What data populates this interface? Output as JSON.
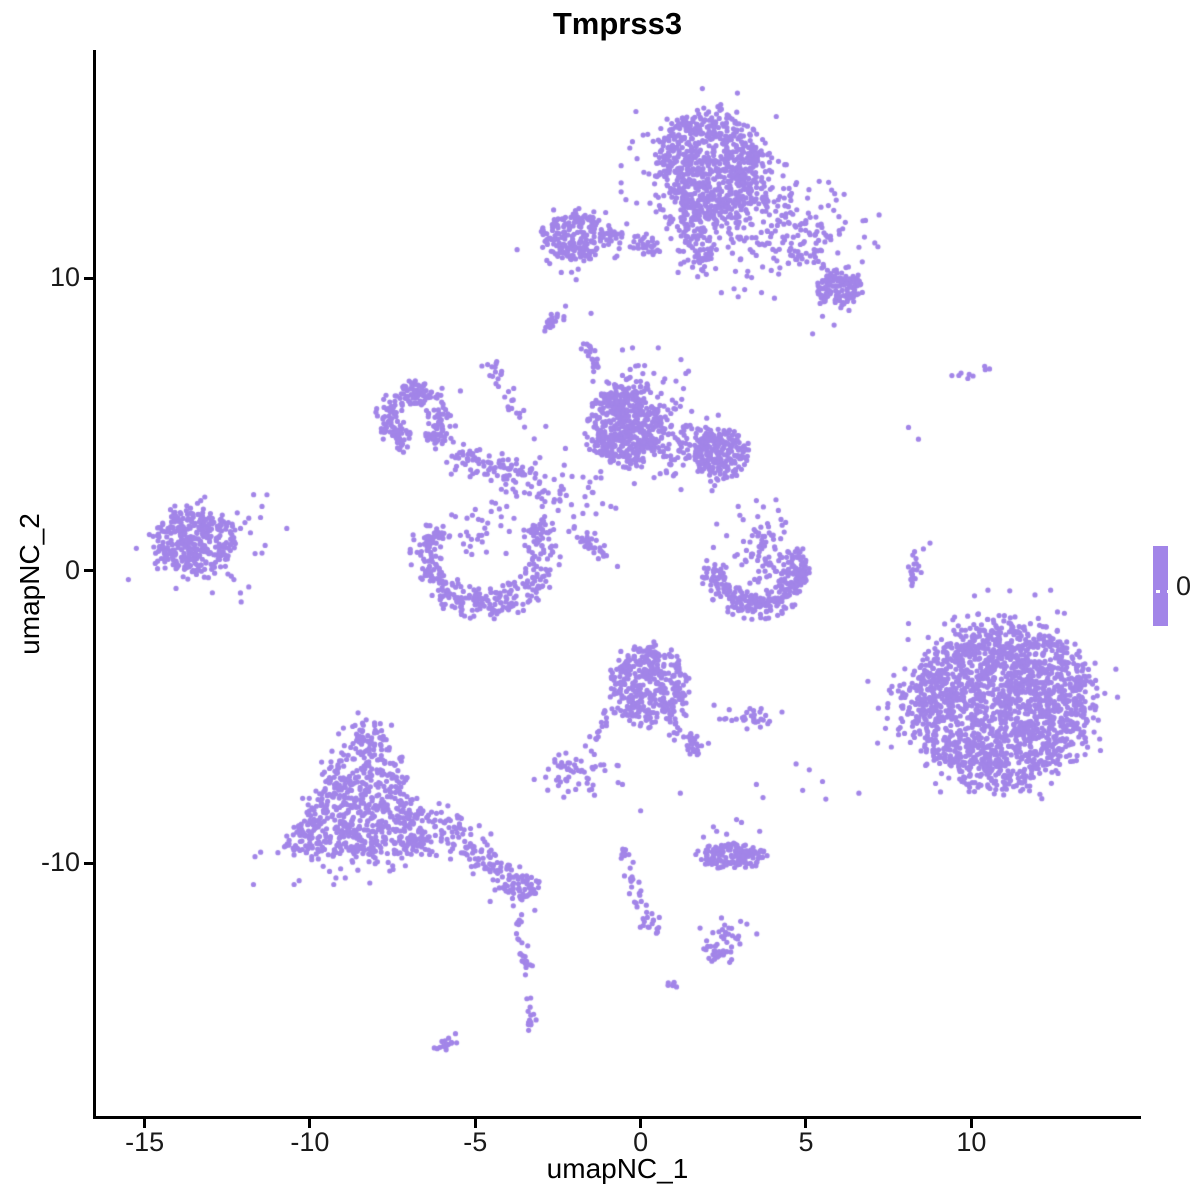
{
  "chart_data": {
    "type": "scatter",
    "title": "Tmprss3",
    "xlabel": "umapNC_1",
    "ylabel": "umapNC_2",
    "xlim": [
      -16.5,
      15.1
    ],
    "ylim": [
      -18.7,
      17.8
    ],
    "x_ticks": [
      -15,
      -10,
      -5,
      0,
      5,
      10
    ],
    "y_ticks": [
      -10,
      0,
      10
    ],
    "grid": false,
    "point_color": "#A285E8",
    "point_radius_px": 2.6,
    "legend": {
      "label": "0",
      "bar_color": "#A285E8",
      "position": "right"
    },
    "clusters": [
      {
        "name": "top-main",
        "type": "disk",
        "cx": 2.1,
        "cy": 13.8,
        "rx": 1.7,
        "ry": 1.9,
        "n": 680
      },
      {
        "name": "top-main-fringe",
        "type": "blob",
        "cx": 2.05,
        "cy": 13.6,
        "sx": 1.1,
        "sy": 1.2,
        "n": 140
      },
      {
        "name": "top-neck",
        "type": "chain",
        "x0": 1.55,
        "y0": 12.0,
        "x1": 1.85,
        "y1": 10.3,
        "w": 0.3,
        "n": 70
      },
      {
        "name": "top-neck-spread",
        "type": "blob",
        "cx": 1.75,
        "cy": 11.6,
        "sx": 0.6,
        "sy": 0.75,
        "n": 45
      },
      {
        "name": "top-right-arm",
        "type": "blob",
        "cx": 4.4,
        "cy": 11.6,
        "sx": 1.25,
        "sy": 0.95,
        "n": 150
      },
      {
        "name": "top-right-bridge",
        "type": "chain",
        "x0": 3.0,
        "y0": 12.9,
        "x1": 5.6,
        "y1": 10.4,
        "w": 0.7,
        "n": 70
      },
      {
        "name": "top-right-clump",
        "type": "disk",
        "cx": 6.0,
        "cy": 9.7,
        "rx": 0.72,
        "ry": 0.65,
        "n": 120
      },
      {
        "name": "top-right-clump-dots",
        "type": "dots",
        "pts": [
          [
            5.5,
            8.7
          ],
          [
            5.85,
            8.4
          ],
          [
            5.2,
            8.1
          ],
          [
            6.3,
            8.9
          ]
        ]
      },
      {
        "name": "top-left-blob",
        "type": "disk",
        "cx": -1.95,
        "cy": 11.45,
        "rx": 1.05,
        "ry": 0.8,
        "n": 180
      },
      {
        "name": "top-left-fringe",
        "type": "blob",
        "cx": -1.9,
        "cy": 11.4,
        "sx": 0.85,
        "sy": 0.6,
        "n": 40
      },
      {
        "name": "top-left-tail",
        "type": "chain",
        "x0": -0.9,
        "y0": 11.4,
        "x1": 0.65,
        "y1": 11.0,
        "w": 0.17,
        "n": 40
      },
      {
        "name": "top-left-dots",
        "type": "dots",
        "pts": [
          [
            -2.4,
            10.2
          ],
          [
            -1.95,
            9.95
          ],
          [
            -2.75,
            10.5
          ]
        ]
      },
      {
        "name": "top-left-streak",
        "type": "chain",
        "x0": -2.85,
        "y0": 8.4,
        "x1": -2.2,
        "y1": 9.05,
        "w": 0.1,
        "n": 20
      },
      {
        "name": "wisp-above-central",
        "type": "chain",
        "x0": -1.6,
        "y0": 7.9,
        "x1": -1.3,
        "y1": 6.6,
        "w": 0.13,
        "n": 22
      },
      {
        "name": "wisp-dots",
        "type": "dots",
        "pts": [
          [
            -1.5,
            8.8
          ],
          [
            -0.55,
            7.55
          ],
          [
            -0.15,
            7.0
          ],
          [
            0.4,
            6.75
          ]
        ]
      },
      {
        "name": "ring",
        "type": "arc",
        "cx": -6.8,
        "cy": 5.2,
        "rx": 0.8,
        "ry": 0.95,
        "a0": -60,
        "a1": 255,
        "w": 0.42,
        "n": 220
      },
      {
        "name": "ring-dots",
        "type": "dots",
        "pts": [
          [
            -6.55,
            6.1
          ],
          [
            -5.45,
            6.15
          ],
          [
            -7.35,
            4.2
          ],
          [
            -6.0,
            4.35
          ],
          [
            -7.7,
            6.0
          ]
        ]
      },
      {
        "name": "ring-to-central-chain",
        "type": "chain",
        "x0": -5.85,
        "y0": 4.0,
        "x1": -3.1,
        "y1": 3.1,
        "w": 0.28,
        "n": 95
      },
      {
        "name": "upper-chain",
        "type": "chain",
        "x0": -4.55,
        "y0": 7.1,
        "x1": -3.5,
        "y1": 4.9,
        "w": 0.14,
        "n": 25
      },
      {
        "name": "upper-chain-dots",
        "type": "dots",
        "pts": [
          [
            -4.3,
            6.3
          ],
          [
            -3.9,
            5.55
          ],
          [
            -4.8,
            7.0
          ]
        ]
      },
      {
        "name": "hub-scatter",
        "type": "blob",
        "cx": -2.35,
        "cy": 2.9,
        "sx": 0.85,
        "sy": 0.85,
        "n": 60
      },
      {
        "name": "hub-chain",
        "type": "chain",
        "x0": -1.8,
        "y0": 1.35,
        "x1": -1.0,
        "y1": 0.5,
        "w": 0.12,
        "n": 28
      },
      {
        "name": "hub-dots",
        "type": "dots",
        "pts": [
          [
            -4.5,
            2.35
          ],
          [
            -4.05,
            2.2
          ],
          [
            -3.75,
            2.55
          ],
          [
            -5.0,
            2.1
          ],
          [
            -5.25,
            1.8
          ],
          [
            -0.7,
            0.15
          ],
          [
            -0.9,
            2.2
          ],
          [
            -1.35,
            1.95
          ]
        ]
      },
      {
        "name": "central-main",
        "type": "disk",
        "cx": -0.5,
        "cy": 5.0,
        "rx": 1.1,
        "ry": 1.35,
        "n": 450
      },
      {
        "name": "central-mid",
        "type": "blob",
        "cx": 0.9,
        "cy": 4.3,
        "sx": 0.75,
        "sy": 0.65,
        "n": 140
      },
      {
        "name": "central-right",
        "type": "disk",
        "cx": 2.45,
        "cy": 4.0,
        "rx": 0.75,
        "ry": 0.88,
        "n": 210
      },
      {
        "name": "central-top-fringe",
        "type": "blob",
        "cx": 0.2,
        "cy": 6.3,
        "sx": 0.8,
        "sy": 0.55,
        "n": 40
      },
      {
        "name": "far-left",
        "type": "disk",
        "cx": -13.5,
        "cy": 1.0,
        "rx": 1.25,
        "ry": 1.12,
        "n": 320
      },
      {
        "name": "far-left-fringe",
        "type": "blob",
        "cx": -13.2,
        "cy": 0.95,
        "sx": 1.0,
        "sy": 0.9,
        "n": 60
      },
      {
        "name": "far-left-dots",
        "type": "dots",
        "pts": [
          [
            -11.45,
            2.2
          ],
          [
            -11.85,
            1.8
          ],
          [
            -12.1,
            1.45
          ],
          [
            -10.7,
            1.45
          ],
          [
            -12.3,
            -0.3
          ],
          [
            -11.85,
            -0.55
          ],
          [
            -14.05,
            -0.6
          ],
          [
            -11.3,
            2.6
          ]
        ]
      },
      {
        "name": "crescent",
        "type": "arc",
        "cx": -4.7,
        "cy": 0.6,
        "rx": 1.75,
        "ry": 1.75,
        "a0": 150,
        "a1": 395,
        "w": 0.52,
        "n": 340
      },
      {
        "name": "crescent-inner",
        "type": "blob",
        "cx": -4.85,
        "cy": 1.3,
        "sx": 0.65,
        "sy": 0.45,
        "n": 30
      },
      {
        "name": "smile",
        "type": "arc",
        "cx": 3.5,
        "cy": 0.35,
        "rx": 1.3,
        "ry": 1.55,
        "a0": 185,
        "a1": 350,
        "w": 0.46,
        "n": 220
      },
      {
        "name": "smile-right-clump",
        "type": "disk",
        "cx": 4.7,
        "cy": 0.1,
        "rx": 0.45,
        "ry": 0.68,
        "n": 60
      },
      {
        "name": "smile-vertical",
        "type": "blob",
        "cx": 3.75,
        "cy": 0.75,
        "sx": 0.38,
        "sy": 0.7,
        "n": 70
      },
      {
        "name": "smile-left-dots",
        "type": "dots",
        "pts": [
          [
            2.3,
            1.6
          ],
          [
            2.6,
            1.2
          ],
          [
            2.2,
            0.8
          ],
          [
            2.85,
            0.5
          ],
          [
            2.5,
            0.2
          ],
          [
            3.0,
            1.9
          ],
          [
            3.5,
            2.4
          ],
          [
            2.0,
            0.35
          ],
          [
            2.95,
            2.2
          ],
          [
            3.1,
            1.75
          ]
        ]
      },
      {
        "name": "center-bottom",
        "type": "disk",
        "cx": 0.25,
        "cy": -3.9,
        "rx": 1.15,
        "ry": 1.3,
        "n": 380
      },
      {
        "name": "cb-right-arm",
        "type": "chain",
        "x0": 0.95,
        "y0": -5.2,
        "x1": 1.7,
        "y1": -6.1,
        "w": 0.2,
        "n": 40
      },
      {
        "name": "cb-left-arm",
        "type": "chain",
        "x0": -0.85,
        "y0": -4.7,
        "x1": -1.6,
        "y1": -6.25,
        "w": 0.11,
        "n": 20
      },
      {
        "name": "cb-right-clump",
        "type": "blob",
        "cx": 3.3,
        "cy": -5.0,
        "sx": 0.45,
        "sy": 0.17,
        "n": 32
      },
      {
        "name": "left-pair",
        "type": "blob",
        "cx": -2.0,
        "cy": -6.95,
        "sx": 0.55,
        "sy": 0.33,
        "n": 55
      },
      {
        "name": "mid-scatter-dots",
        "type": "dots",
        "pts": [
          [
            -0.55,
            -7.3
          ],
          [
            0.0,
            -8.2
          ],
          [
            3.5,
            -7.3
          ],
          [
            3.7,
            -7.75
          ],
          [
            2.9,
            -8.5
          ],
          [
            2.3,
            -8.9
          ],
          [
            1.2,
            -7.6
          ]
        ]
      },
      {
        "name": "bottom-left-triangle",
        "type": "tri",
        "apexX": -8.3,
        "apexY": -4.9,
        "baseY": -9.6,
        "halfW": 2.3,
        "skew": -0.15,
        "n": 700
      },
      {
        "name": "bl-base-fringe",
        "type": "blob",
        "cx": -8.6,
        "cy": -9.4,
        "sx": 1.6,
        "sy": 0.55,
        "n": 70
      },
      {
        "name": "bl-tail",
        "type": "chain",
        "x0": -6.2,
        "y0": -8.4,
        "x1": -4.0,
        "y1": -10.5,
        "w": 0.3,
        "n": 120
      },
      {
        "name": "bl-hook",
        "type": "disk",
        "cx": -3.6,
        "cy": -10.8,
        "rx": 0.55,
        "ry": 0.45,
        "n": 60
      },
      {
        "name": "bl-hook-dots",
        "type": "dots",
        "pts": [
          [
            -3.85,
            -11.45
          ],
          [
            -3.6,
            -11.75
          ],
          [
            -3.2,
            -11.6
          ],
          [
            -4.55,
            -11.3
          ]
        ]
      },
      {
        "name": "thin-chain-upper",
        "type": "chain",
        "x0": -3.7,
        "y0": -11.9,
        "x1": -3.35,
        "y1": -14.2,
        "w": 0.09,
        "n": 24
      },
      {
        "name": "thin-chain-lower",
        "type": "chain",
        "x0": -3.38,
        "y0": -14.3,
        "x1": -3.3,
        "y1": -15.75,
        "w": 0.09,
        "n": 15,
        "clump_end": true
      },
      {
        "name": "bottom-streak",
        "type": "chain",
        "x0": -6.1,
        "y0": -16.3,
        "x1": -5.55,
        "y1": -15.95,
        "w": 0.09,
        "n": 15
      },
      {
        "name": "j-chain-upper",
        "type": "chain",
        "x0": -0.55,
        "y0": -9.2,
        "x1": -0.15,
        "y1": -11.0,
        "w": 0.11,
        "n": 22
      },
      {
        "name": "j-chain-lower",
        "type": "chain",
        "x0": -0.15,
        "y0": -11.0,
        "x1": 0.45,
        "y1": -12.35,
        "w": 0.15,
        "n": 26
      },
      {
        "name": "bottom-band",
        "type": "disk",
        "cx": 2.75,
        "cy": -9.75,
        "rx": 1.05,
        "ry": 0.45,
        "n": 140
      },
      {
        "name": "bottom-band-dots",
        "type": "dots",
        "pts": [
          [
            2.2,
            -8.75
          ],
          [
            3.05,
            -8.6
          ],
          [
            2.6,
            -9.0
          ],
          [
            3.6,
            -8.9
          ],
          [
            1.9,
            -9.1
          ]
        ]
      },
      {
        "name": "small-clump-below",
        "type": "blob",
        "cx": 2.6,
        "cy": -12.6,
        "sx": 0.38,
        "sy": 0.35,
        "n": 40
      },
      {
        "name": "small-clump-tail",
        "type": "chain",
        "x0": 2.35,
        "y0": -12.95,
        "x1": 2.1,
        "y1": -13.35,
        "w": 0.08,
        "n": 8
      },
      {
        "name": "tiny-pair",
        "type": "blob",
        "cx": 0.9,
        "cy": -14.1,
        "sx": 0.14,
        "sy": 0.11,
        "n": 6
      },
      {
        "name": "bottom-right-main",
        "type": "disk",
        "cx": 10.9,
        "cy": -4.6,
        "rx": 2.75,
        "ry": 2.85,
        "n": 1750
      },
      {
        "name": "bottom-right-fringe",
        "type": "blob",
        "cx": 10.8,
        "cy": -4.5,
        "sx": 1.6,
        "sy": 1.6,
        "n": 120
      },
      {
        "name": "bottom-right-left-arm",
        "type": "blob",
        "cx": 8.3,
        "cy": -4.7,
        "sx": 0.6,
        "sy": 0.55,
        "n": 55
      },
      {
        "name": "bottom-right-dots",
        "type": "dots",
        "pts": [
          [
            8.45,
            -3.3
          ],
          [
            8.1,
            -1.8
          ],
          [
            7.6,
            -3.95
          ],
          [
            7.8,
            -5.6
          ]
        ]
      },
      {
        "name": "right-string",
        "type": "chain",
        "x0": 8.2,
        "y0": -0.65,
        "x1": 8.35,
        "y1": 0.55,
        "w": 0.1,
        "n": 18
      },
      {
        "name": "right-string-dots",
        "type": "dots",
        "pts": [
          [
            8.75,
            0.95
          ],
          [
            8.55,
            0.75
          ]
        ]
      },
      {
        "name": "right-mid-dots",
        "type": "dots",
        "pts": [
          [
            4.7,
            -6.6
          ],
          [
            5.1,
            -6.8
          ],
          [
            5.5,
            -7.2
          ],
          [
            4.9,
            -7.5
          ],
          [
            5.6,
            -7.8
          ],
          [
            6.6,
            -7.6
          ]
        ]
      },
      {
        "name": "right-top-clump",
        "type": "blob",
        "cx": 9.9,
        "cy": 6.75,
        "sx": 0.28,
        "sy": 0.1,
        "n": 8
      },
      {
        "name": "right-top-dots",
        "type": "dots",
        "pts": [
          [
            10.55,
            6.9
          ],
          [
            8.1,
            4.9
          ],
          [
            8.4,
            4.5
          ]
        ]
      }
    ]
  }
}
